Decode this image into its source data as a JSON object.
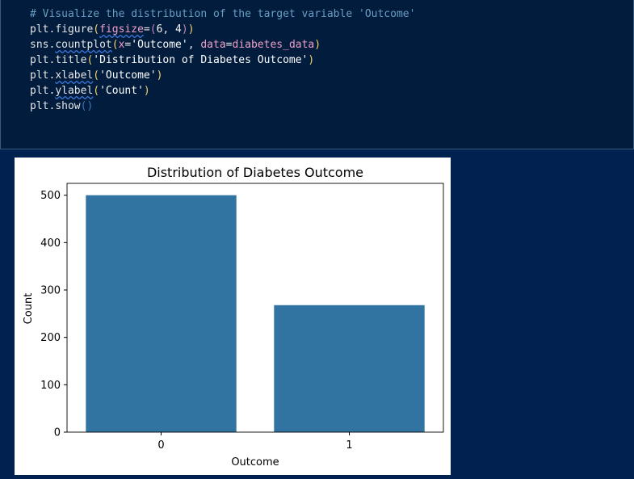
{
  "code_cell": {
    "lines": [
      {
        "tokens": [
          {
            "t": "# Visualize the distribution of the target variable 'Outcome'",
            "c": "cm"
          }
        ]
      },
      {
        "tokens": [
          {
            "t": "plt",
            "c": "id"
          },
          {
            "t": ".",
            "c": "id"
          },
          {
            "t": "figure",
            "c": "fn"
          },
          {
            "t": "(",
            "c": "p1"
          },
          {
            "t": "figsize",
            "c": "kw sq"
          },
          {
            "t": "=",
            "c": "id"
          },
          {
            "t": "(",
            "c": "p2"
          },
          {
            "t": "6",
            "c": "nm"
          },
          {
            "t": ", ",
            "c": "id"
          },
          {
            "t": "4",
            "c": "nm"
          },
          {
            "t": ")",
            "c": "p2"
          },
          {
            "t": ")",
            "c": "p1"
          }
        ]
      },
      {
        "tokens": [
          {
            "t": "sns",
            "c": "id"
          },
          {
            "t": ".",
            "c": "id"
          },
          {
            "t": "countplot",
            "c": "fn sq"
          },
          {
            "t": "(",
            "c": "p1"
          },
          {
            "t": "x",
            "c": "kw"
          },
          {
            "t": "=",
            "c": "id"
          },
          {
            "t": "'Outcome'",
            "c": "st"
          },
          {
            "t": ", ",
            "c": "id"
          },
          {
            "t": "data",
            "c": "kw"
          },
          {
            "t": "=",
            "c": "id"
          },
          {
            "t": "diabetes_data",
            "c": "kw"
          },
          {
            "t": ")",
            "c": "p1"
          }
        ]
      },
      {
        "tokens": [
          {
            "t": "plt",
            "c": "id"
          },
          {
            "t": ".",
            "c": "id"
          },
          {
            "t": "title",
            "c": "fn"
          },
          {
            "t": "(",
            "c": "p1"
          },
          {
            "t": "'Distribution of Diabetes Outcome'",
            "c": "st"
          },
          {
            "t": ")",
            "c": "p1"
          }
        ]
      },
      {
        "tokens": [
          {
            "t": "plt",
            "c": "id"
          },
          {
            "t": ".",
            "c": "id"
          },
          {
            "t": "xlabel",
            "c": "fn sq"
          },
          {
            "t": "(",
            "c": "p1"
          },
          {
            "t": "'Outcome'",
            "c": "st"
          },
          {
            "t": ")",
            "c": "p1"
          }
        ]
      },
      {
        "tokens": [
          {
            "t": "plt",
            "c": "id"
          },
          {
            "t": ".",
            "c": "id"
          },
          {
            "t": "ylabel",
            "c": "fn sq"
          },
          {
            "t": "(",
            "c": "p1"
          },
          {
            "t": "'Count'",
            "c": "st"
          },
          {
            "t": ")",
            "c": "p1"
          }
        ]
      },
      {
        "tokens": [
          {
            "t": "plt",
            "c": "id"
          },
          {
            "t": ".",
            "c": "id"
          },
          {
            "t": "show",
            "c": "fn"
          },
          {
            "t": "(",
            "c": "p3"
          },
          {
            "t": ")",
            "c": "p3"
          }
        ]
      }
    ]
  },
  "chart_data": {
    "type": "bar",
    "title": "Distribution of Diabetes Outcome",
    "xlabel": "Outcome",
    "ylabel": "Count",
    "categories": [
      "0",
      "1"
    ],
    "values": [
      500,
      268
    ],
    "ylim": [
      0,
      525
    ],
    "yticks": [
      0,
      100,
      200,
      300,
      400,
      500
    ],
    "bar_color": "#3274a1",
    "grid": false
  }
}
